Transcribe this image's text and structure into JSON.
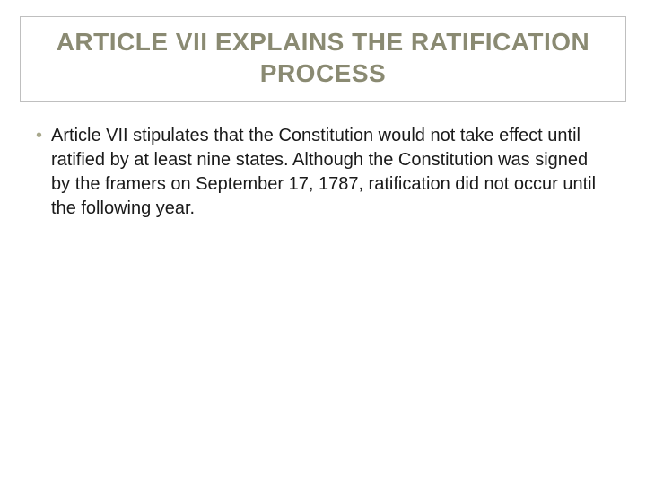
{
  "slide": {
    "title": "ARTICLE VII EXPLAINS THE RATIFICATION PROCESS",
    "bullets": [
      {
        "text": "Article VII stipulates that the Constitution would not take effect until ratified by at least nine states. Although the Constitution was signed by the framers on September 17, 1787, ratification did not occur until the following year."
      }
    ]
  },
  "colors": {
    "title_color": "#8a8a72",
    "title_border": "#bfbfbf",
    "bullet_marker": "#a8a88c",
    "body_text": "#1a1a1a",
    "background": "#ffffff"
  },
  "typography": {
    "title_fontsize": 28,
    "title_weight": "bold",
    "body_fontsize": 20,
    "font_family": "Arial"
  }
}
